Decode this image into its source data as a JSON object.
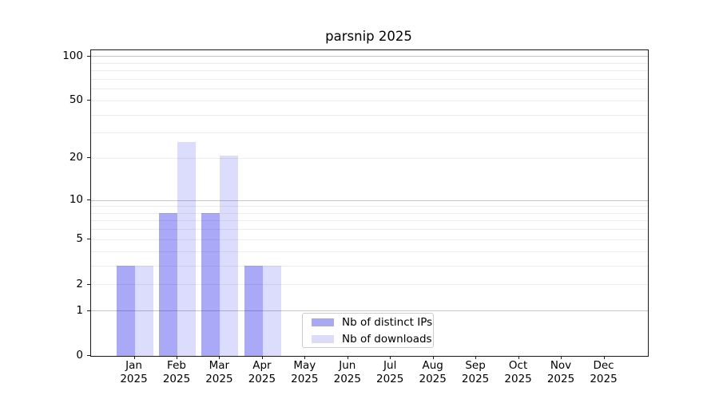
{
  "title": "parsnip 2025",
  "chart_data": {
    "type": "bar",
    "title": "parsnip 2025",
    "categories": [
      "Jan 2025",
      "Feb 2025",
      "Mar 2025",
      "Apr 2025",
      "May 2025",
      "Jun 2025",
      "Jul 2025",
      "Aug 2025",
      "Sep 2025",
      "Oct 2025",
      "Nov 2025",
      "Dec 2025"
    ],
    "x_tick_months": [
      "Jan",
      "Feb",
      "Mar",
      "Apr",
      "May",
      "Jun",
      "Jul",
      "Aug",
      "Sep",
      "Oct",
      "Nov",
      "Dec"
    ],
    "x_tick_year": "2025",
    "series": [
      {
        "name": "Nb of distinct IPs",
        "color": "#a8a8f3",
        "fill": "rgba(8,8,235,0.35)",
        "values": [
          3,
          8,
          8,
          3,
          0,
          0,
          0,
          0,
          0,
          0,
          0,
          0
        ]
      },
      {
        "name": "Nb of downloads",
        "color": "#dcdcf9",
        "fill": "rgba(8,8,235,0.14)",
        "values": [
          3,
          26,
          21,
          3,
          0,
          0,
          0,
          0,
          0,
          0,
          0,
          0
        ]
      }
    ],
    "yscale": "log1p",
    "ylim": [
      0,
      110
    ],
    "y_tick_values": [
      0,
      1,
      2,
      5,
      10,
      20,
      50,
      100
    ],
    "y_tick_labels": [
      "0",
      "1",
      "2",
      "5",
      "10",
      "20",
      "50",
      "100"
    ],
    "y_major_gridlines": [
      1,
      10,
      100
    ],
    "y_minor_gridlines": [
      2,
      3,
      4,
      5,
      6,
      7,
      8,
      9,
      20,
      30,
      40,
      50,
      60,
      70,
      80,
      90
    ],
    "grid": "on",
    "legend_position": "bottom-center-inside",
    "xlabel": "",
    "ylabel": ""
  }
}
